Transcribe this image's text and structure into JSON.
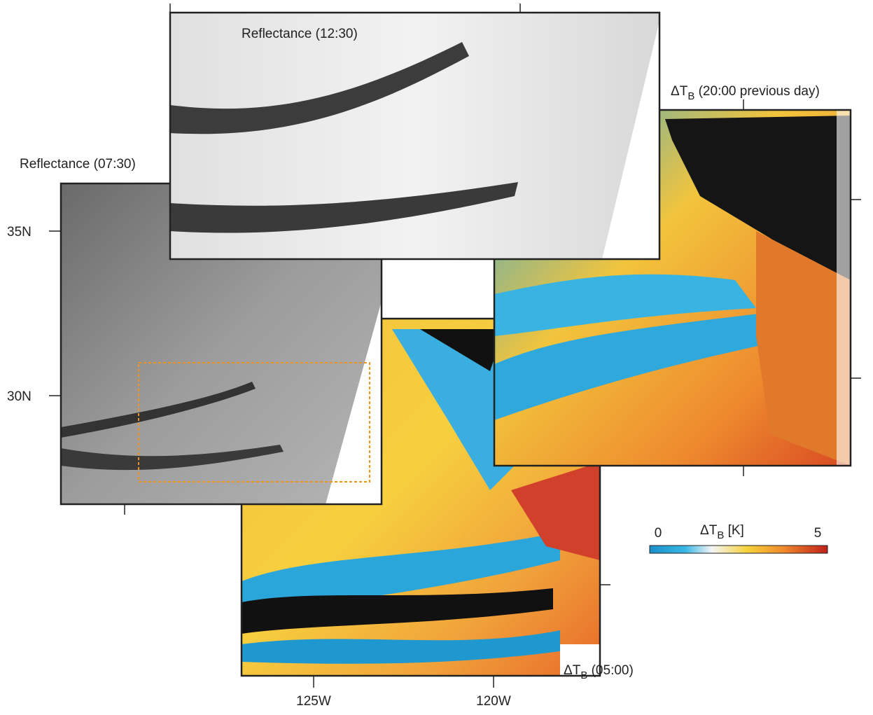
{
  "panels": [
    {
      "symbol": "Reflectance",
      "time": "(07:30)"
    },
    {
      "symbol": "Reflectance",
      "time": "(12:30)"
    },
    {
      "symbol": "ΔT",
      "subscript": "B",
      "time": "(20:00 previous day)"
    },
    {
      "symbol": "ΔT",
      "subscript": "B",
      "time": "(05:00)"
    }
  ],
  "latitude_labels": [
    "35N",
    "30N"
  ],
  "longitude_labels": [
    "125W",
    "120W"
  ],
  "colorbar": {
    "symbol": "ΔT",
    "subscript": "B",
    "unit": "[K]",
    "min_label": "0",
    "max_label": "5"
  }
}
